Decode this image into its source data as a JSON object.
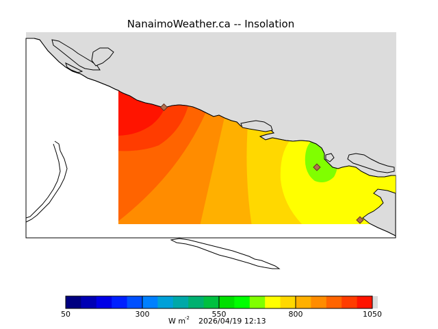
{
  "title": "NanaimoWeather.ca -- Insolation",
  "colorbar": {
    "min": 50,
    "max": 1050,
    "step": 50,
    "tick_values": [
      "50",
      "300",
      "550",
      "800",
      "1050"
    ],
    "colors": [
      "#000080",
      "#0000b4",
      "#0000e6",
      "#0020ff",
      "#0050ff",
      "#0080ff",
      "#00a0d8",
      "#00a8a8",
      "#00b070",
      "#00c040",
      "#00e000",
      "#00ff00",
      "#80ff00",
      "#ffff00",
      "#ffd800",
      "#ffb000",
      "#ff8c00",
      "#ff6400",
      "#ff3c00",
      "#ff1400"
    ],
    "unit_text": "W m",
    "unit_exponent": "-2",
    "timestamp": "2026/04/19 12:13"
  },
  "map_colors": {
    "land": "#dcdcdc",
    "water": "#ffffff",
    "coast": "#000000",
    "station_marker": "#b07050"
  },
  "insolation_bands_w_m2": [
    1000,
    950,
    900,
    850,
    800,
    750,
    700,
    650,
    600
  ],
  "stations": [
    {
      "name": "station-west",
      "value_band": "1000-1050"
    },
    {
      "name": "station-nanaimo",
      "value_band": "600-650"
    },
    {
      "name": "station-south",
      "value_band": "650-700"
    }
  ]
}
